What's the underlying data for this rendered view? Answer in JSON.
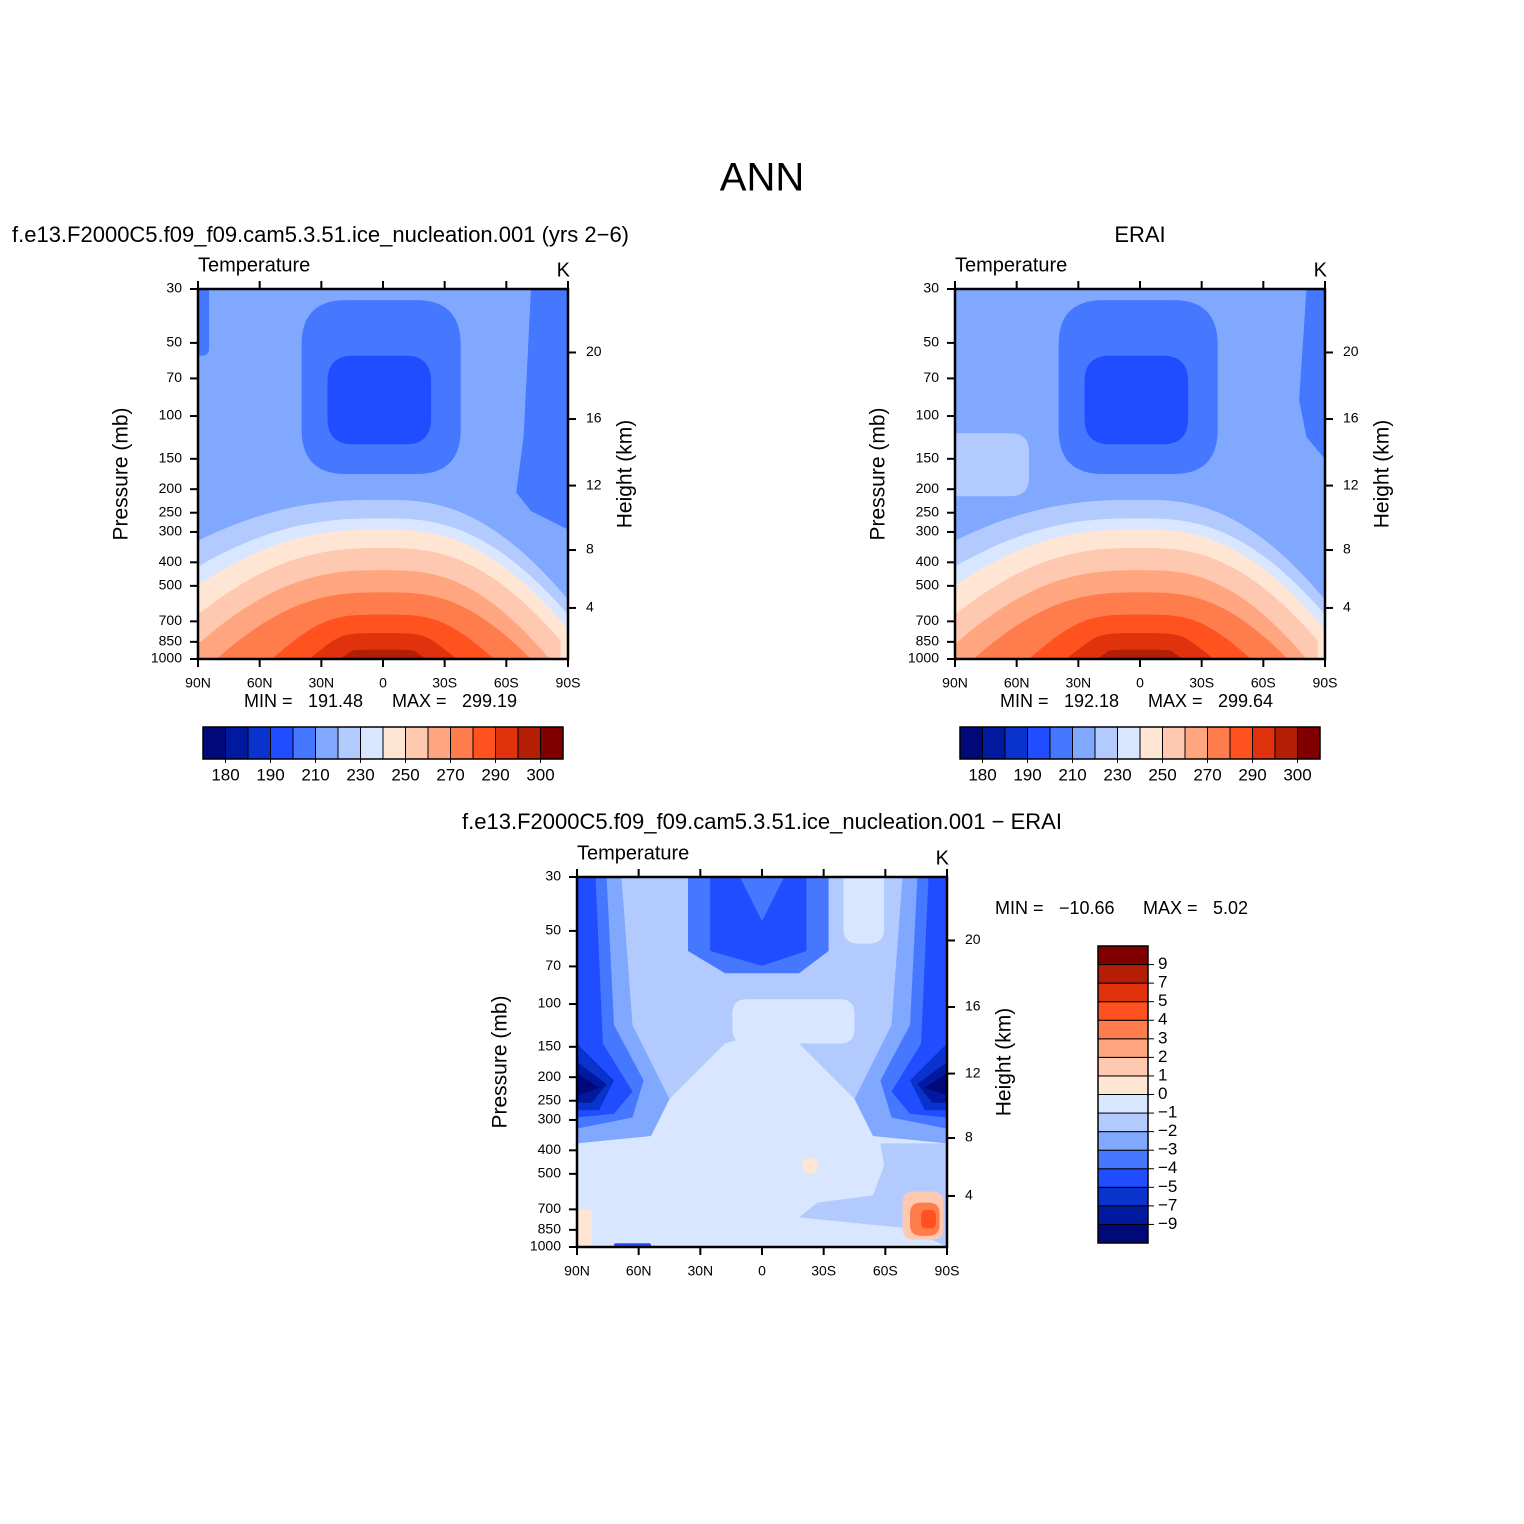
{
  "title": "ANN",
  "chart_data": [
    {
      "type": "contour",
      "title": "f.e13.F2000C5.f09_f09.cam5.3.51.ice_nucleation.001  (yrs 2−6)",
      "subtitle": "Temperature",
      "units": "K",
      "ylabel": "Pressure (mb)",
      "y2label": "Height (km)",
      "xlim": [
        90,
        -90
      ],
      "xticks": [
        {
          "value": 90,
          "label": "90N"
        },
        {
          "value": 60,
          "label": "60N"
        },
        {
          "value": 30,
          "label": "30N"
        },
        0,
        {
          "value": -30,
          "label": "30S"
        },
        {
          "value": -60,
          "label": "60S"
        },
        {
          "value": -90,
          "label": "90S"
        }
      ],
      "ylim": [
        1000,
        30
      ],
      "y_scale": "log",
      "yticks": [
        30,
        50,
        70,
        100,
        150,
        200,
        250,
        300,
        400,
        500,
        700,
        850,
        1000
      ],
      "y2ticks": [
        4,
        8,
        12,
        16,
        20
      ],
      "min_label": "MIN  =",
      "min": 191.48,
      "max_label": "MAX  =",
      "max": 299.19,
      "colorbar": "horizontal",
      "levels": [
        180,
        190,
        210,
        230,
        250,
        270,
        290,
        300
      ],
      "colors": [
        "#00087a",
        "#00199e",
        "#0a32cc",
        "#1f4dff",
        "#4677ff",
        "#80a8ff",
        "#b3caff",
        "#d8e6ff",
        "#ffe6d4",
        "#ffc8b0",
        "#ffa680",
        "#ff7d4d",
        "#ff521f",
        "#e0330d",
        "#b31e05",
        "#800000"
      ]
    },
    {
      "type": "contour",
      "title": "ERAI",
      "subtitle": "Temperature",
      "units": "K",
      "ylabel": "Pressure (mb)",
      "y2label": "Height (km)",
      "xlim": [
        90,
        -90
      ],
      "xticks": [
        {
          "value": 90,
          "label": "90N"
        },
        {
          "value": 60,
          "label": "60N"
        },
        {
          "value": 30,
          "label": "30N"
        },
        0,
        {
          "value": -30,
          "label": "30S"
        },
        {
          "value": -60,
          "label": "60S"
        },
        {
          "value": -90,
          "label": "90S"
        }
      ],
      "ylim": [
        1000,
        30
      ],
      "y_scale": "log",
      "yticks": [
        30,
        50,
        70,
        100,
        150,
        200,
        250,
        300,
        400,
        500,
        700,
        850,
        1000
      ],
      "y2ticks": [
        4,
        8,
        12,
        16,
        20
      ],
      "min_label": "MIN  =",
      "min": 192.18,
      "max_label": "MAX  =",
      "max": 299.64,
      "colorbar": "horizontal",
      "levels": [
        180,
        190,
        210,
        230,
        250,
        270,
        290,
        300
      ],
      "colors": [
        "#00087a",
        "#00199e",
        "#0a32cc",
        "#1f4dff",
        "#4677ff",
        "#80a8ff",
        "#b3caff",
        "#d8e6ff",
        "#ffe6d4",
        "#ffc8b0",
        "#ffa680",
        "#ff7d4d",
        "#ff521f",
        "#e0330d",
        "#b31e05",
        "#800000"
      ]
    },
    {
      "type": "contour",
      "title": "f.e13.F2000C5.f09_f09.cam5.3.51.ice_nucleation.001  −  ERAI",
      "subtitle": "Temperature",
      "units": "K",
      "ylabel": "Pressure (mb)",
      "y2label": "Height (km)",
      "xlim": [
        90,
        -90
      ],
      "xticks": [
        {
          "value": 90,
          "label": "90N"
        },
        {
          "value": 60,
          "label": "60N"
        },
        {
          "value": 30,
          "label": "30N"
        },
        0,
        {
          "value": -30,
          "label": "30S"
        },
        {
          "value": -60,
          "label": "60S"
        },
        {
          "value": -90,
          "label": "90S"
        }
      ],
      "ylim": [
        1000,
        30
      ],
      "y_scale": "log",
      "yticks": [
        30,
        50,
        70,
        100,
        150,
        200,
        250,
        300,
        400,
        500,
        700,
        850,
        1000
      ],
      "y2ticks": [
        4,
        8,
        12,
        16,
        20
      ],
      "min_label": "MIN  =",
      "min": {
        "value": -10.66,
        "label": "−10.66"
      },
      "max_label": "MAX  =",
      "max": 5.02,
      "colorbar": "vertical",
      "levels": [
        {
          "value": -9,
          "label": "−9"
        },
        {
          "value": -7,
          "label": "−7"
        },
        {
          "value": -5,
          "label": "−5"
        },
        {
          "value": -4,
          "label": "−4"
        },
        {
          "value": -3,
          "label": "−3"
        },
        {
          "value": -2,
          "label": "−2"
        },
        {
          "value": -1,
          "label": "−1"
        },
        0,
        1,
        2,
        3,
        4,
        5,
        7,
        9
      ],
      "colors": [
        "#00087a",
        "#00199e",
        "#0a32cc",
        "#1f4dff",
        "#4677ff",
        "#80a8ff",
        "#b3caff",
        "#d8e6ff",
        "#ffe6d4",
        "#ffc8b0",
        "#ffa680",
        "#ff7d4d",
        "#ff521f",
        "#e0330d",
        "#b31e05",
        "#800000"
      ]
    }
  ]
}
